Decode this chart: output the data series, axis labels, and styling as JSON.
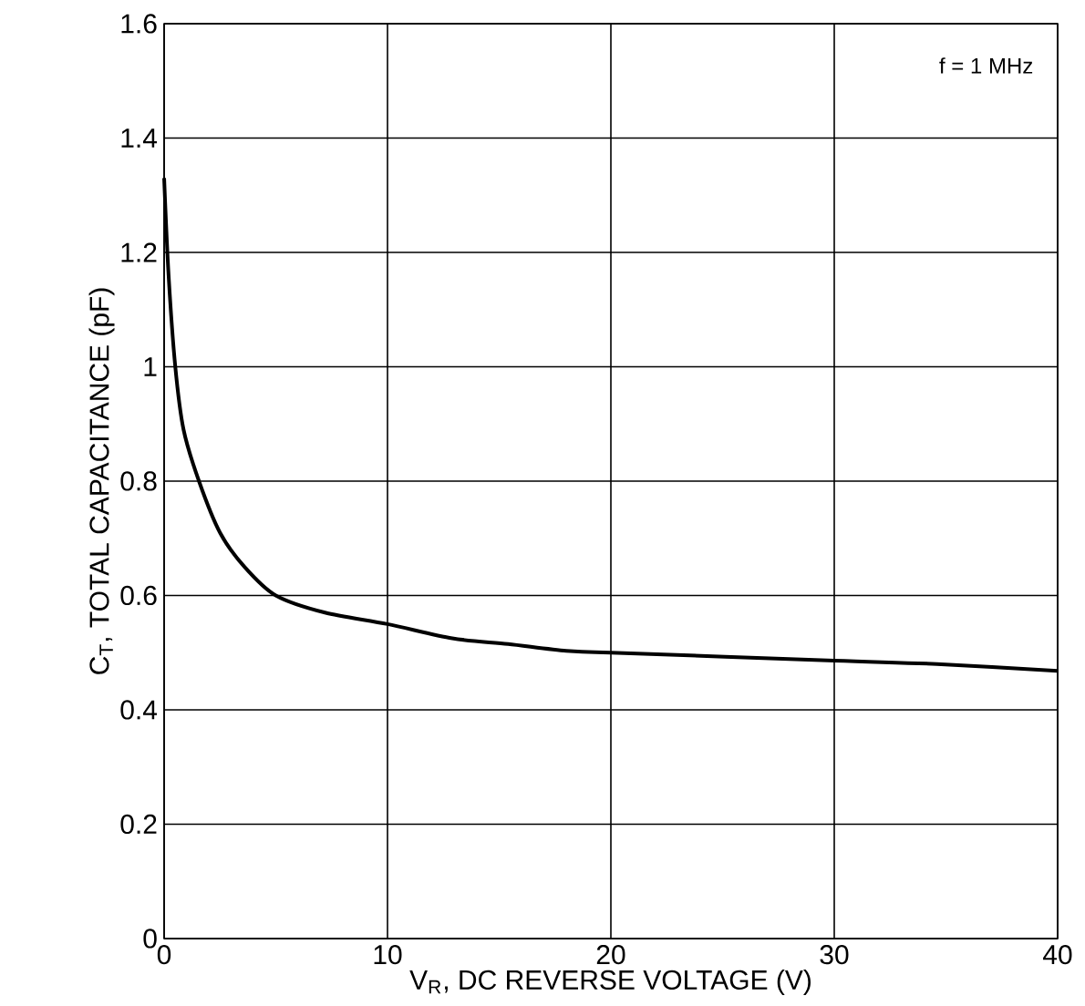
{
  "chart_data": {
    "type": "line",
    "xlabel": "V$_{R}$, DC REVERSE VOLTAGE (V)",
    "ylabel": "C$_{T}$, TOTAL CAPACITANCE (pF)",
    "x": [
      0,
      0.2,
      0.5,
      0.87,
      1.56,
      2.5,
      3.6,
      5,
      7.2,
      10,
      12.9,
      15.4,
      18,
      20,
      30,
      34.6,
      40
    ],
    "series": [
      {
        "color": "#000000",
        "values": [
          1.33,
          1.16,
          1.0,
          0.89,
          0.8,
          0.71,
          0.65,
          0.6,
          0.57,
          0.55,
          0.525,
          0.515,
          0.503,
          0.5,
          0.486,
          0.48,
          0.468
        ]
      }
    ],
    "xlim": [
      0,
      40
    ],
    "xticks": [
      0,
      10,
      20,
      30,
      40
    ],
    "ylim": [
      0,
      1.6
    ],
    "yticks": [
      0,
      0.2,
      0.4,
      0.6,
      0.8,
      1,
      1.2,
      1.4,
      1.6
    ],
    "grid": true,
    "marker": "none",
    "line_style": "solid",
    "annotations": [
      "f = 1 MHz"
    ]
  }
}
